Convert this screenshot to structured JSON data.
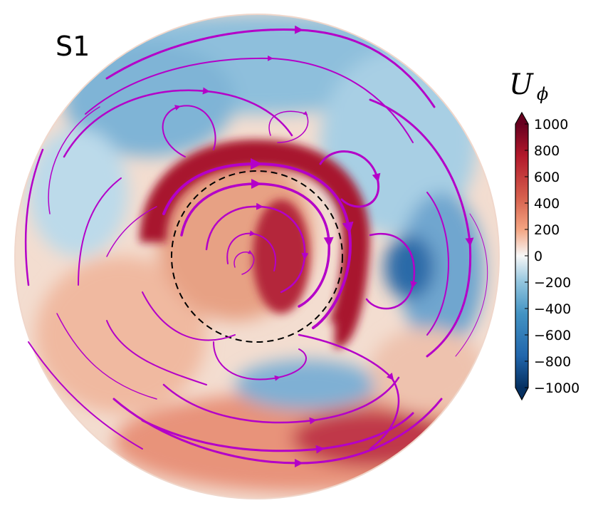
{
  "figure": {
    "panel_label": "S1",
    "colorbar": {
      "symbol": "U",
      "subscript": "ϕ",
      "ticks": [
        "1000",
        "800",
        "600",
        "400",
        "200",
        "0",
        "−200",
        "−400",
        "−600",
        "−800",
        "−1000"
      ],
      "range": [
        -1000,
        1000
      ],
      "colors": {
        "max": "#67001f",
        "high": "#b2182b",
        "mid_high": "#f4a582",
        "zero": "#f7f7f7",
        "mid_low": "#92c5de",
        "low": "#2166ac",
        "min": "#053061"
      }
    },
    "streamline_color": "#b400c8",
    "reference_circle_style": "dashed black"
  }
}
